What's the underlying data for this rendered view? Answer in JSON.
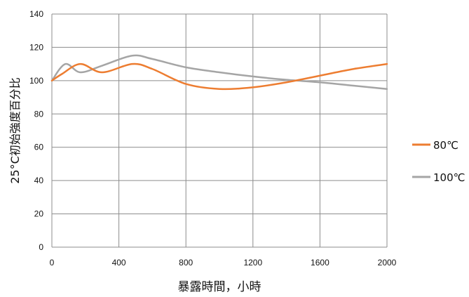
{
  "chart_data": {
    "type": "line",
    "xlabel": "暴露時間，小時",
    "ylabel": "25°C初始強度百分比",
    "xlim": [
      0,
      2000
    ],
    "ylim": [
      0,
      140
    ],
    "xticks": [
      0,
      400,
      800,
      1200,
      1600,
      2000
    ],
    "yticks": [
      0,
      20,
      40,
      60,
      80,
      100,
      120,
      140
    ],
    "grid": true,
    "legend_position": "right",
    "series": [
      {
        "name": "80℃",
        "color": "#ED7D31",
        "x": [
          0,
          60,
          170,
          300,
          480,
          600,
          800,
          1000,
          1200,
          1400,
          1600,
          1800,
          2000
        ],
        "y": [
          100,
          104,
          110,
          105,
          110,
          107,
          98,
          95,
          96,
          99,
          103,
          107,
          110
        ]
      },
      {
        "name": "100℃",
        "color": "#A5A5A5",
        "x": [
          0,
          80,
          170,
          300,
          480,
          600,
          800,
          1000,
          1200,
          1400,
          1600,
          1800,
          2000
        ],
        "y": [
          100,
          110,
          105,
          109,
          115,
          113,
          108,
          105,
          102.5,
          100.5,
          99,
          97,
          95
        ]
      }
    ]
  }
}
